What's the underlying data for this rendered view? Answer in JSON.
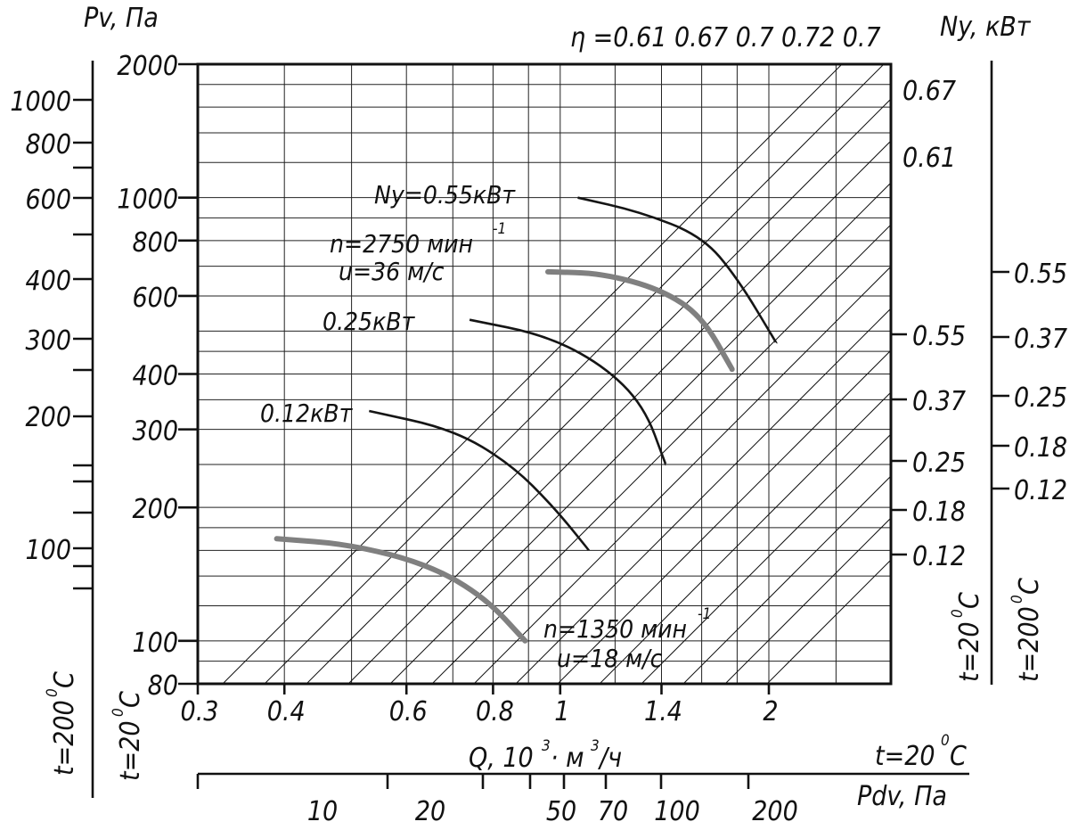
{
  "chart_data": {
    "type": "line",
    "scale": "log-log",
    "grid": true,
    "x_axis": {
      "label": "Q, 10",
      "label_sup1": "3",
      "label_mid": "· м",
      "label_sup2": "3",
      "label_tail": "/ч",
      "range": [
        0.3,
        3.0
      ],
      "ticks": [
        0.3,
        0.4,
        0.6,
        0.8,
        1,
        1.4,
        2
      ],
      "tick_labels": [
        "0.3",
        "0.4",
        "0.6",
        "0.8",
        "1",
        "1.4",
        "2"
      ]
    },
    "y_axis": {
      "range": [
        80,
        2000
      ],
      "ticks": [
        80,
        100,
        200,
        300,
        400,
        600,
        800,
        1000,
        2000
      ],
      "tick_labels": [
        "80",
        "100",
        "200",
        "300",
        "400",
        "600",
        "800",
        "1000",
        "2000"
      ]
    },
    "left_scales": {
      "pv_label": "Pv, Па",
      "pv_ticks": [
        "1000",
        "800",
        "600",
        "400",
        "300",
        "200",
        "100"
      ],
      "temp_200": "t=200",
      "temp_20": "t=20",
      "deg": "0",
      "unit": "С"
    },
    "right_scales": {
      "ny_label": "Ny, кВт",
      "eta_top": "0.67",
      "eta_mid": "0.61",
      "inner_ticks": [
        "0.55",
        "0.37",
        "0.25",
        "0.18",
        "0.12"
      ],
      "outer_ticks": [
        "0.55",
        "0.37",
        "0.25",
        "0.18",
        "0.12"
      ],
      "temp_20": "t=20",
      "temp_200": "t=200",
      "deg": "0",
      "unit": "С"
    },
    "efficiency_lines": {
      "label": "η =0.61 0.67 0.7   0.72 0.7"
    },
    "dynamic_pressure_axis": {
      "label": "Pdv, Па",
      "temp": "t=20",
      "deg": "0",
      "unit": "С",
      "tick_labels": [
        "10",
        "20",
        "50",
        "70",
        "100",
        "200"
      ]
    },
    "series": [
      {
        "name": "Ny=0.55кВт",
        "style": "power",
        "points": [
          [
            1.06,
            1000
          ],
          [
            1.3,
            930
          ],
          [
            1.6,
            820
          ],
          [
            1.8,
            660
          ],
          [
            2.05,
            470
          ]
        ]
      },
      {
        "name": "0.25кВт",
        "style": "power",
        "points": [
          [
            0.74,
            530
          ],
          [
            0.95,
            490
          ],
          [
            1.15,
            420
          ],
          [
            1.32,
            340
          ],
          [
            1.42,
            250
          ]
        ]
      },
      {
        "name": "0.12кВт",
        "style": "power",
        "points": [
          [
            0.53,
            330
          ],
          [
            0.7,
            300
          ],
          [
            0.85,
            250
          ],
          [
            0.98,
            200
          ],
          [
            1.1,
            160
          ]
        ]
      },
      {
        "name": "n=2750 мин",
        "style": "speed",
        "annotation_sup": "-1",
        "annotation_line2": "u=36 м/с",
        "points": [
          [
            0.96,
            680
          ],
          [
            1.15,
            675
          ],
          [
            1.4,
            620
          ],
          [
            1.6,
            540
          ],
          [
            1.77,
            410
          ]
        ]
      },
      {
        "name": "n=1350 мин",
        "style": "speed",
        "annotation_sup": "-1",
        "annotation_line2": "u=18 м/с",
        "points": [
          [
            0.39,
            170
          ],
          [
            0.5,
            165
          ],
          [
            0.65,
            148
          ],
          [
            0.78,
            125
          ],
          [
            0.89,
            100
          ]
        ]
      }
    ]
  }
}
